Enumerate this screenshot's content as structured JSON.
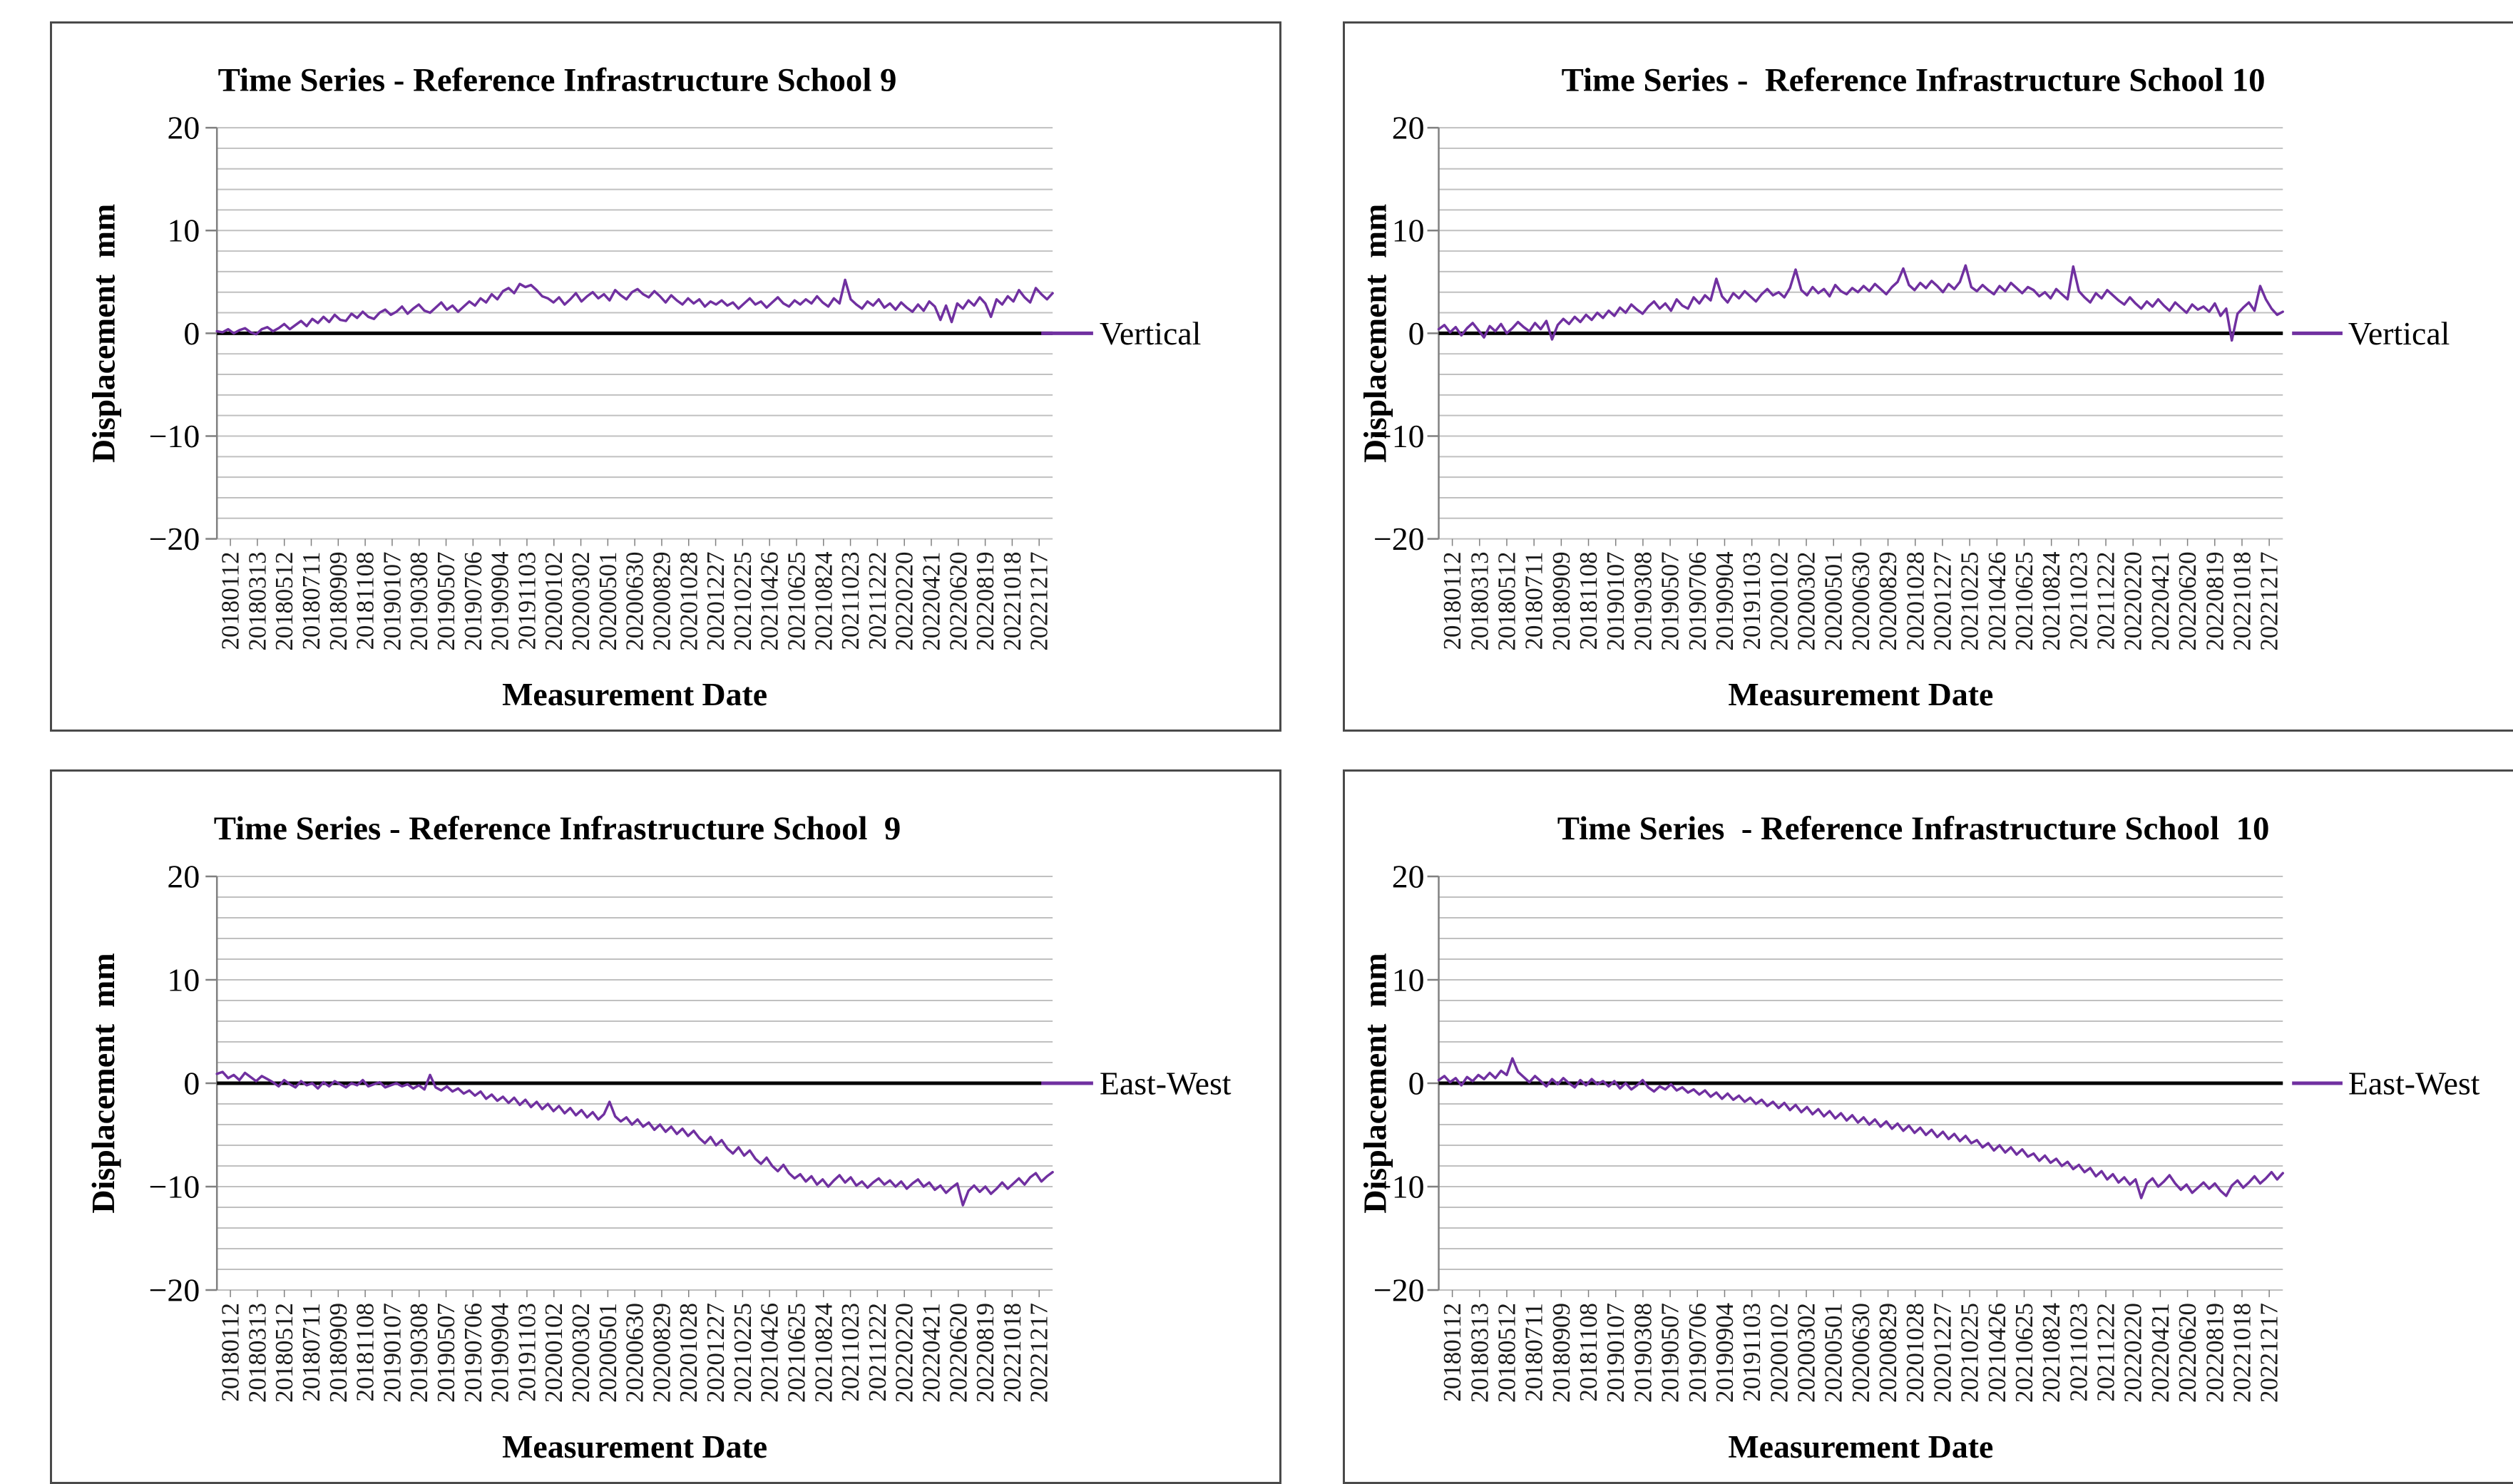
{
  "styles": {
    "line_color": "#7030A0",
    "grid_color": "#C0C0C0",
    "axis_color": "#808080",
    "zero_line_color": "#000000",
    "panel_border_color": "#4A4A4A",
    "text_color": "#000000"
  },
  "chart_data": [
    {
      "type": "line",
      "title": "Time Series - Reference Infrastructure School 9",
      "x_axis_label": "Measurement Date",
      "y_axis_label": "Displacement  mm",
      "legend": {
        "label": "Vertical",
        "position": "right-at-zero"
      },
      "line_color": "#7030A0",
      "ylim": [
        -20,
        20
      ],
      "yticks": [
        20,
        10,
        0,
        -10,
        -20
      ],
      "grid": "on",
      "grid_step": 2,
      "x_tick_labels": [
        "20180112",
        "20180313",
        "20180512",
        "20180711",
        "20180909",
        "20181108",
        "20190107",
        "20190308",
        "20190507",
        "20190706",
        "20190904",
        "20191103",
        "20200102",
        "20200302",
        "20200501",
        "20200630",
        "20200829",
        "20201028",
        "20201227",
        "20210225",
        "20210426",
        "20210625",
        "20210824",
        "20211023",
        "20211222",
        "20220220",
        "20220421",
        "20220620",
        "20220819",
        "20221018",
        "20221217"
      ],
      "values": [
        0.2,
        0.1,
        0.4,
        0.0,
        0.3,
        0.5,
        0.1,
        -0.1,
        0.4,
        0.6,
        0.2,
        0.5,
        0.9,
        0.4,
        0.8,
        1.2,
        0.7,
        1.4,
        1.0,
        1.6,
        1.1,
        1.8,
        1.3,
        1.2,
        1.9,
        1.5,
        2.1,
        1.6,
        1.4,
        2.0,
        2.3,
        1.8,
        2.1,
        2.6,
        1.9,
        2.4,
        2.8,
        2.2,
        2.0,
        2.5,
        3.0,
        2.3,
        2.7,
        2.1,
        2.6,
        3.1,
        2.7,
        3.4,
        3.0,
        3.8,
        3.3,
        4.1,
        4.4,
        3.9,
        4.8,
        4.5,
        4.7,
        4.2,
        3.6,
        3.4,
        3.0,
        3.5,
        2.8,
        3.3,
        3.9,
        3.1,
        3.6,
        4.0,
        3.4,
        3.8,
        3.2,
        4.2,
        3.7,
        3.3,
        4.0,
        4.3,
        3.8,
        3.5,
        4.1,
        3.6,
        3.0,
        3.7,
        3.2,
        2.8,
        3.4,
        2.9,
        3.3,
        2.6,
        3.1,
        2.8,
        3.2,
        2.7,
        3.0,
        2.4,
        2.9,
        3.4,
        2.8,
        3.1,
        2.5,
        3.0,
        3.5,
        2.9,
        2.6,
        3.2,
        2.8,
        3.3,
        2.9,
        3.6,
        3.0,
        2.6,
        3.4,
        2.9,
        5.2,
        3.3,
        2.8,
        2.4,
        3.1,
        2.7,
        3.3,
        2.5,
        2.9,
        2.3,
        3.0,
        2.5,
        2.1,
        2.8,
        2.2,
        3.1,
        2.6,
        1.3,
        2.7,
        1.1,
        2.9,
        2.4,
        3.2,
        2.7,
        3.5,
        2.9,
        1.6,
        3.3,
        2.8,
        3.6,
        3.1,
        4.2,
        3.5,
        3.0,
        4.4,
        3.8,
        3.3,
        3.9
      ]
    },
    {
      "type": "line",
      "title": "Time Series -  Reference Infrastructure School 10",
      "x_axis_label": "Measurement Date",
      "y_axis_label": "Displacement  mm",
      "legend": {
        "label": "Vertical",
        "position": "right-at-zero"
      },
      "line_color": "#7030A0",
      "ylim": [
        -20,
        20
      ],
      "yticks": [
        20,
        10,
        0,
        -10,
        -20
      ],
      "grid": "on",
      "grid_step": 2,
      "x_tick_labels": [
        "20180112",
        "20180313",
        "20180512",
        "20180711",
        "20180909",
        "20181108",
        "20190107",
        "20190308",
        "20190507",
        "20190706",
        "20190904",
        "20191103",
        "20200102",
        "20200302",
        "20200501",
        "20200630",
        "20200829",
        "20201028",
        "20201227",
        "20210225",
        "20210426",
        "20210625",
        "20210824",
        "20211023",
        "20211222",
        "20220220",
        "20220421",
        "20220620",
        "20220819",
        "20221018",
        "20221217"
      ],
      "values": [
        0.4,
        0.8,
        0.1,
        0.6,
        -0.2,
        0.5,
        1.0,
        0.3,
        -0.4,
        0.7,
        0.2,
        0.9,
        0.0,
        0.5,
        1.1,
        0.6,
        0.2,
        1.0,
        0.4,
        1.2,
        -0.6,
        0.8,
        1.4,
        0.9,
        1.6,
        1.1,
        1.8,
        1.3,
        2.0,
        1.5,
        2.2,
        1.7,
        2.5,
        2.0,
        2.8,
        2.3,
        1.9,
        2.6,
        3.1,
        2.4,
        2.9,
        2.2,
        3.3,
        2.7,
        2.4,
        3.5,
        2.9,
        3.7,
        3.2,
        5.3,
        3.6,
        3.0,
        3.9,
        3.4,
        4.1,
        3.6,
        3.1,
        3.8,
        4.3,
        3.7,
        4.0,
        3.5,
        4.4,
        6.2,
        4.2,
        3.7,
        4.5,
        3.9,
        4.3,
        3.6,
        4.7,
        4.1,
        3.8,
        4.4,
        4.0,
        4.6,
        4.1,
        4.8,
        4.3,
        3.8,
        4.5,
        5.0,
        6.3,
        4.7,
        4.2,
        4.9,
        4.4,
        5.1,
        4.6,
        4.0,
        4.8,
        4.3,
        5.0,
        6.6,
        4.5,
        4.1,
        4.7,
        4.2,
        3.8,
        4.6,
        4.1,
        4.9,
        4.4,
        3.9,
        4.5,
        4.2,
        3.6,
        4.0,
        3.4,
        4.3,
        3.8,
        3.3,
        6.5,
        4.1,
        3.5,
        3.0,
        3.9,
        3.4,
        4.2,
        3.7,
        3.2,
        2.8,
        3.5,
        2.9,
        2.4,
        3.1,
        2.6,
        3.3,
        2.7,
        2.2,
        3.0,
        2.5,
        2.0,
        2.8,
        2.3,
        2.6,
        2.1,
        2.9,
        1.7,
        2.4,
        -0.7,
        1.9,
        2.5,
        3.0,
        2.2,
        4.6,
        3.3,
        2.4,
        1.8,
        2.1
      ]
    },
    {
      "type": "line",
      "title": "Time Series - Reference Infrastructure School  9",
      "x_axis_label": "Measurement Date",
      "y_axis_label": "Displacement  mm",
      "legend": {
        "label": "East-West",
        "position": "right-at-zero"
      },
      "line_color": "#7030A0",
      "ylim": [
        -20,
        20
      ],
      "yticks": [
        20,
        10,
        0,
        -10,
        -20
      ],
      "grid": "on",
      "grid_step": 2,
      "x_tick_labels": [
        "20180112",
        "20180313",
        "20180512",
        "20180711",
        "20180909",
        "20181108",
        "20190107",
        "20190308",
        "20190507",
        "20190706",
        "20190904",
        "20191103",
        "20200102",
        "20200302",
        "20200501",
        "20200630",
        "20200829",
        "20201028",
        "20201227",
        "20210225",
        "20210426",
        "20210625",
        "20210824",
        "20211023",
        "20211222",
        "20220220",
        "20220421",
        "20220620",
        "20220819",
        "20221018",
        "20221217"
      ],
      "values": [
        0.9,
        1.1,
        0.5,
        0.8,
        0.3,
        1.0,
        0.6,
        0.2,
        0.7,
        0.4,
        0.1,
        -0.3,
        0.3,
        -0.1,
        -0.4,
        0.2,
        -0.2,
        0.0,
        -0.5,
        0.1,
        -0.3,
        0.2,
        -0.1,
        -0.4,
        0.0,
        -0.2,
        0.3,
        -0.3,
        -0.1,
        0.1,
        -0.4,
        -0.2,
        0.0,
        -0.3,
        -0.1,
        -0.5,
        -0.2,
        -0.6,
        0.8,
        -0.4,
        -0.7,
        -0.3,
        -0.8,
        -0.5,
        -1.0,
        -0.7,
        -1.2,
        -0.8,
        -1.5,
        -1.1,
        -1.7,
        -1.3,
        -1.9,
        -1.4,
        -2.1,
        -1.6,
        -2.3,
        -1.8,
        -2.5,
        -2.0,
        -2.7,
        -2.2,
        -2.9,
        -2.4,
        -3.1,
        -2.6,
        -3.3,
        -2.8,
        -3.5,
        -3.0,
        -1.8,
        -3.2,
        -3.7,
        -3.3,
        -4.0,
        -3.5,
        -4.2,
        -3.8,
        -4.5,
        -4.0,
        -4.7,
        -4.2,
        -4.9,
        -4.4,
        -5.1,
        -4.6,
        -5.3,
        -5.8,
        -5.2,
        -6.0,
        -5.5,
        -6.3,
        -6.8,
        -6.2,
        -7.0,
        -6.5,
        -7.3,
        -7.8,
        -7.2,
        -8.0,
        -8.5,
        -7.9,
        -8.7,
        -9.2,
        -8.8,
        -9.5,
        -9.0,
        -9.8,
        -9.3,
        -10.0,
        -9.4,
        -8.9,
        -9.6,
        -9.1,
        -9.9,
        -9.5,
        -10.1,
        -9.6,
        -9.2,
        -9.8,
        -9.4,
        -10.0,
        -9.5,
        -10.2,
        -9.7,
        -9.3,
        -10.0,
        -9.6,
        -10.3,
        -9.9,
        -10.6,
        -10.1,
        -9.7,
        -11.8,
        -10.4,
        -9.9,
        -10.5,
        -10.0,
        -10.7,
        -10.2,
        -9.6,
        -10.2,
        -9.7,
        -9.2,
        -9.8,
        -9.1,
        -8.7,
        -9.5,
        -9.0,
        -8.6
      ]
    },
    {
      "type": "line",
      "title": "Time Series  - Reference Infrastructure School  10",
      "x_axis_label": "Measurement Date",
      "y_axis_label": "Displacement  mm",
      "legend": {
        "label": "East-West",
        "position": "right-at-zero"
      },
      "line_color": "#7030A0",
      "ylim": [
        -20,
        20
      ],
      "yticks": [
        20,
        10,
        0,
        -10,
        -20
      ],
      "grid": "on",
      "grid_step": 2,
      "x_tick_labels": [
        "20180112",
        "20180313",
        "20180512",
        "20180711",
        "20180909",
        "20181108",
        "20190107",
        "20190308",
        "20190507",
        "20190706",
        "20190904",
        "20191103",
        "20200102",
        "20200302",
        "20200501",
        "20200630",
        "20200829",
        "20201028",
        "20201227",
        "20210225",
        "20210426",
        "20210625",
        "20210824",
        "20211023",
        "20211222",
        "20220220",
        "20220421",
        "20220620",
        "20220819",
        "20221018",
        "20221217"
      ],
      "values": [
        0.3,
        0.7,
        0.1,
        0.5,
        -0.2,
        0.6,
        0.2,
        0.8,
        0.4,
        1.0,
        0.5,
        1.2,
        0.8,
        2.4,
        1.1,
        0.6,
        0.1,
        0.7,
        0.2,
        -0.3,
        0.4,
        -0.1,
        0.5,
        0.0,
        -0.4,
        0.3,
        -0.2,
        0.4,
        -0.1,
        0.2,
        -0.3,
        0.2,
        -0.5,
        0.0,
        -0.6,
        -0.2,
        0.3,
        -0.4,
        -0.8,
        -0.3,
        -0.6,
        -0.1,
        -0.7,
        -0.4,
        -0.9,
        -0.6,
        -1.1,
        -0.7,
        -1.3,
        -0.9,
        -1.5,
        -1.0,
        -1.6,
        -1.2,
        -1.8,
        -1.4,
        -2.0,
        -1.6,
        -2.2,
        -1.8,
        -2.4,
        -1.9,
        -2.6,
        -2.1,
        -2.8,
        -2.3,
        -3.0,
        -2.5,
        -3.2,
        -2.7,
        -3.4,
        -2.9,
        -3.6,
        -3.1,
        -3.8,
        -3.3,
        -4.0,
        -3.5,
        -4.2,
        -3.7,
        -4.4,
        -3.9,
        -4.6,
        -4.1,
        -4.8,
        -4.3,
        -5.0,
        -4.5,
        -5.2,
        -4.7,
        -5.4,
        -4.9,
        -5.6,
        -5.1,
        -5.8,
        -5.5,
        -6.2,
        -5.8,
        -6.5,
        -6.0,
        -6.7,
        -6.2,
        -6.9,
        -6.4,
        -7.1,
        -6.8,
        -7.5,
        -7.0,
        -7.7,
        -7.3,
        -8.0,
        -7.6,
        -8.3,
        -7.9,
        -8.6,
        -8.2,
        -9.0,
        -8.5,
        -9.3,
        -8.8,
        -9.6,
        -9.1,
        -9.8,
        -9.3,
        -11.1,
        -9.7,
        -9.2,
        -10.0,
        -9.5,
        -8.9,
        -9.7,
        -10.3,
        -9.8,
        -10.6,
        -10.1,
        -9.6,
        -10.2,
        -9.7,
        -10.4,
        -10.9,
        -9.9,
        -9.4,
        -10.1,
        -9.6,
        -9.0,
        -9.7,
        -9.2,
        -8.6,
        -9.3,
        -8.7
      ]
    }
  ]
}
